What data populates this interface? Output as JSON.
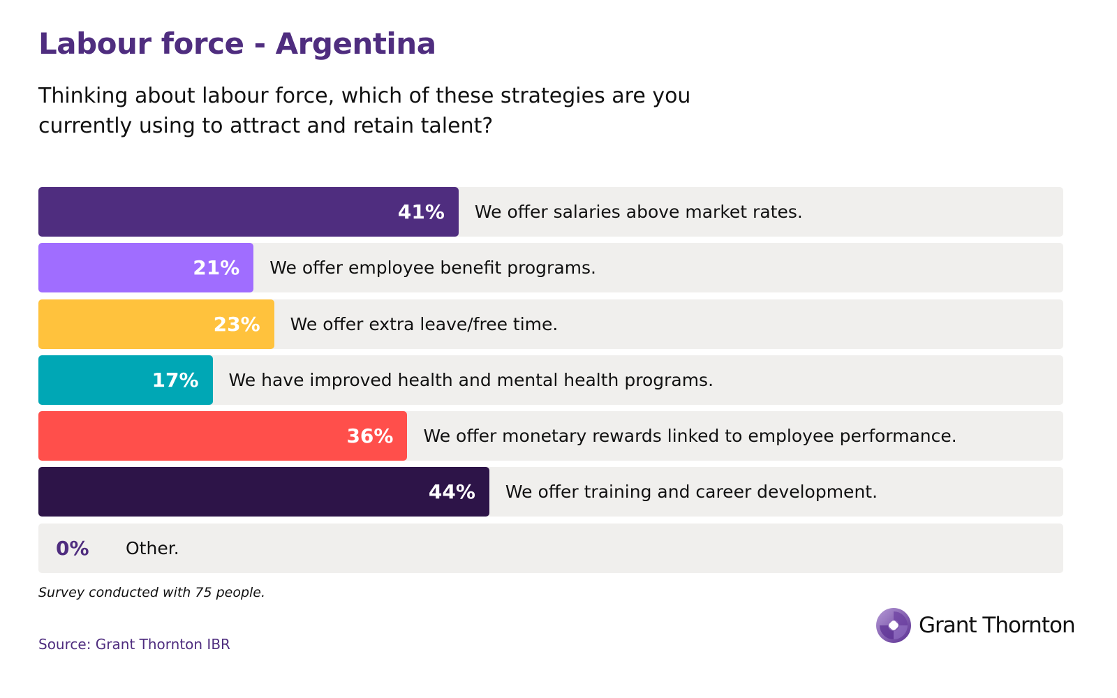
{
  "title": "Labour force - Argentina",
  "subtitle": "Thinking about labour force, which of these strategies are you currently using to attract and retain talent?",
  "chart_data": {
    "type": "bar",
    "orientation": "horizontal",
    "xlim": [
      0,
      100
    ],
    "grid": false,
    "categories": [
      "We offer salaries above market rates.",
      "We offer employee benefit programs.",
      "We offer extra leave/free time.",
      "We have improved health and mental health programs.",
      "We offer monetary rewards linked to employee performance.",
      "We offer training and career development.",
      "Other."
    ],
    "values": [
      41,
      21,
      23,
      17,
      36,
      44,
      0
    ],
    "value_labels": [
      "41%",
      "21%",
      "23%",
      "17%",
      "36%",
      "44%",
      "0%"
    ],
    "colors": [
      "#4f2d7f",
      "#a06dff",
      "#ffc23d",
      "#00a7b5",
      "#ff4f4b",
      "#2d1448",
      "#4f2d7f"
    ],
    "track_color": "#f0efed"
  },
  "note": "Survey conducted with 75 people.",
  "source": "Source: Grant Thornton IBR",
  "logo": {
    "text": "Grant Thornton",
    "color": "#4f2d7f"
  }
}
